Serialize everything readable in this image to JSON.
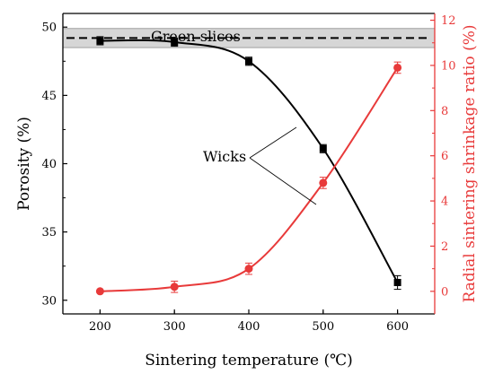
{
  "chart_data": {
    "type": "line",
    "xlabel": "Sintering temperature (℃)",
    "ylabel_left": "Porosity (%)",
    "ylabel_right": "Radial sintering shrinkage ratio (%)",
    "xlim": [
      150,
      650
    ],
    "ylim_left": [
      29,
      51
    ],
    "ylim_right": [
      -1,
      12.3
    ],
    "x_ticks": [
      200,
      300,
      400,
      500,
      600
    ],
    "y_ticks_left": [
      30,
      35,
      40,
      45,
      50
    ],
    "y_ticks_right": [
      0,
      2,
      4,
      6,
      8,
      10,
      12
    ],
    "reference_line": {
      "label": "Green slices",
      "value": 49.2,
      "band": [
        48.5,
        49.9
      ]
    },
    "annotation": "Wicks",
    "series": [
      {
        "axis": "left",
        "marker": "square",
        "color": "#000000",
        "x": [
          200,
          300,
          400,
          500,
          600
        ],
        "y": [
          49.0,
          48.9,
          47.5,
          41.1,
          31.3
        ],
        "err": [
          0.3,
          0.3,
          0.3,
          0.3,
          0.5
        ]
      },
      {
        "axis": "right",
        "marker": "circle",
        "color": "#e83a3a",
        "x": [
          200,
          300,
          400,
          500,
          600
        ],
        "y": [
          0.0,
          0.2,
          1.0,
          4.8,
          9.9
        ],
        "err": [
          0.05,
          0.25,
          0.25,
          0.25,
          0.25
        ]
      }
    ]
  }
}
